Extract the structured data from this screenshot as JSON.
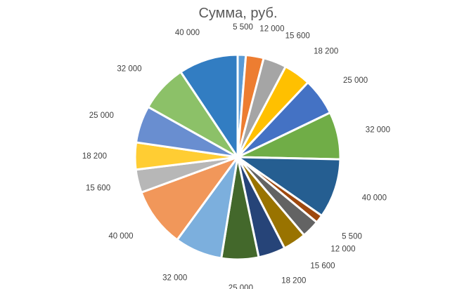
{
  "chart_data": {
    "type": "pie",
    "title": "Сумма, руб.",
    "categories": [],
    "values": [
      5500,
      12000,
      15600,
      18200,
      25000,
      32000,
      40000,
      5500,
      12000,
      15600,
      18200,
      25000,
      32000,
      40000,
      15600,
      18200,
      25000,
      32000,
      40000
    ],
    "labels": [
      "5 500",
      "12 000",
      "15 600",
      "18 200",
      "25 000",
      "32 000",
      "40 000",
      "5 500",
      "12 000",
      "15 600",
      "18 200",
      "25 000",
      "32 000",
      "40 000",
      "15 600",
      "18 200",
      "25 000",
      "32 000",
      "40 000"
    ],
    "colors": [
      "#5B9BD5",
      "#ED7D31",
      "#A5A5A5",
      "#FFC000",
      "#4472C4",
      "#70AD47",
      "#255E91",
      "#9E480E",
      "#636363",
      "#997300",
      "#264478",
      "#43682B",
      "#7CAFDD",
      "#F1975A",
      "#B7B7B7",
      "#FFCD33",
      "#698ED0",
      "#8CC168",
      "#327DC2"
    ],
    "legend": "none"
  }
}
